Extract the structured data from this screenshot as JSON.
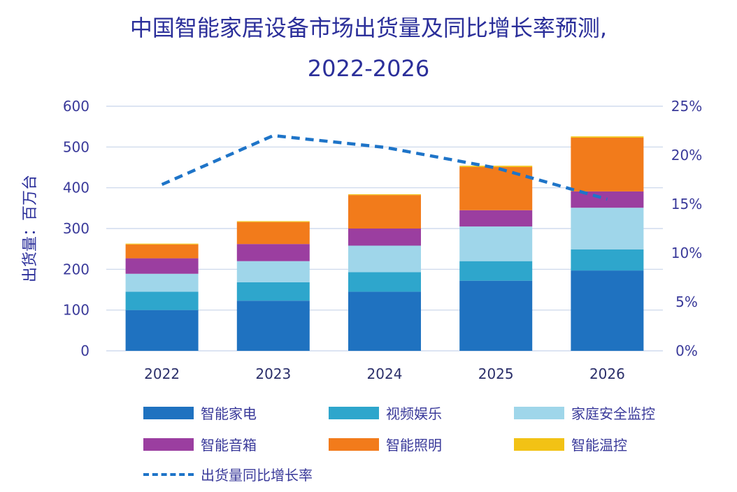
{
  "chart_data": {
    "type": "bar",
    "stacked": true,
    "title_line1": "中国智能家居设备市场出货量及同比增长率预测,",
    "title_line2": "2022-2026",
    "ylabel": "出货量：百万台",
    "categories": [
      "2022",
      "2023",
      "2024",
      "2025",
      "2026"
    ],
    "ylim": [
      0,
      600
    ],
    "yticks": [
      "0",
      "100",
      "200",
      "300",
      "400",
      "500",
      "600"
    ],
    "y2lim": [
      0,
      25
    ],
    "y2ticks": [
      "0%",
      "5%",
      "10%",
      "15%",
      "20%",
      "25%"
    ],
    "series": [
      {
        "name": "智能家电",
        "color": "#1f72c0",
        "values": [
          100,
          123,
          145,
          172,
          197
        ]
      },
      {
        "name": "视频娱乐",
        "color": "#2ea6cc",
        "values": [
          45,
          45,
          48,
          48,
          52
        ]
      },
      {
        "name": "家庭安全监控",
        "color": "#9fd6ea",
        "values": [
          44,
          52,
          65,
          85,
          102
        ]
      },
      {
        "name": "智能音箱",
        "color": "#9b3ea0",
        "values": [
          38,
          42,
          42,
          40,
          40
        ]
      },
      {
        "name": "智能照明",
        "color": "#f27b1b",
        "values": [
          34,
          54,
          82,
          106,
          132
        ]
      },
      {
        "name": "智能温控",
        "color": "#f2c215",
        "values": [
          2,
          2,
          2,
          3,
          3
        ]
      }
    ],
    "line": {
      "name": "出货量同比增长率",
      "color": "#1e74c8",
      "values": [
        17.0,
        22.0,
        20.8,
        18.7,
        15.5
      ]
    }
  }
}
